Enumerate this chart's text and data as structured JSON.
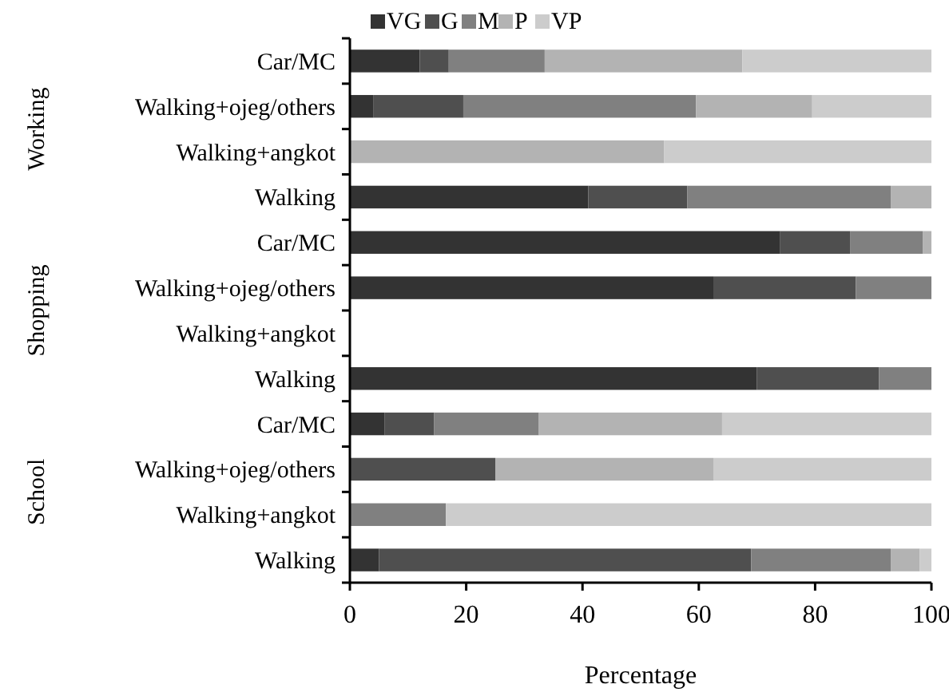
{
  "chart_data": {
    "type": "bar",
    "orientation": "horizontal",
    "stacked": true,
    "xlabel": "Percentage",
    "categories": [
      "Car/MC",
      "Walking+ojeg/others",
      "Walking+angkot",
      "Walking",
      "Car/MC",
      "Walking+ojeg/others",
      "Walking+angkot",
      "Walking",
      "Car/MC",
      "Walking+ojeg/others",
      "Walking+angkot",
      "Walking"
    ],
    "series": [
      {
        "name": "VG",
        "color": "#333333",
        "values": [
          12,
          4,
          0,
          41,
          74,
          62.5,
          null,
          70,
          6,
          0,
          0,
          5
        ]
      },
      {
        "name": "G",
        "color": "#4f4f4f",
        "values": [
          5,
          15.5,
          0,
          17,
          12,
          24.5,
          null,
          21,
          8.5,
          25,
          0,
          64
        ]
      },
      {
        "name": "M",
        "color": "#808080",
        "values": [
          16.5,
          40,
          0,
          35,
          12.5,
          13,
          null,
          9,
          18,
          0,
          16.5,
          24
        ]
      },
      {
        "name": "P",
        "color": "#b3b3b3",
        "values": [
          34,
          20,
          54,
          7,
          1.5,
          0,
          null,
          0,
          31.5,
          37.5,
          0,
          5
        ]
      },
      {
        "name": "VP",
        "color": "#cccccc",
        "values": [
          32.5,
          20.5,
          46,
          0,
          0,
          0,
          null,
          0,
          36,
          37.5,
          83.5,
          2
        ]
      }
    ],
    "annotations": [
      "Working",
      "Shopping",
      "School"
    ],
    "xlim": [
      0,
      100
    ],
    "xticks": [
      0,
      20,
      40,
      60,
      80,
      100
    ],
    "grid": false,
    "legend": "top"
  }
}
